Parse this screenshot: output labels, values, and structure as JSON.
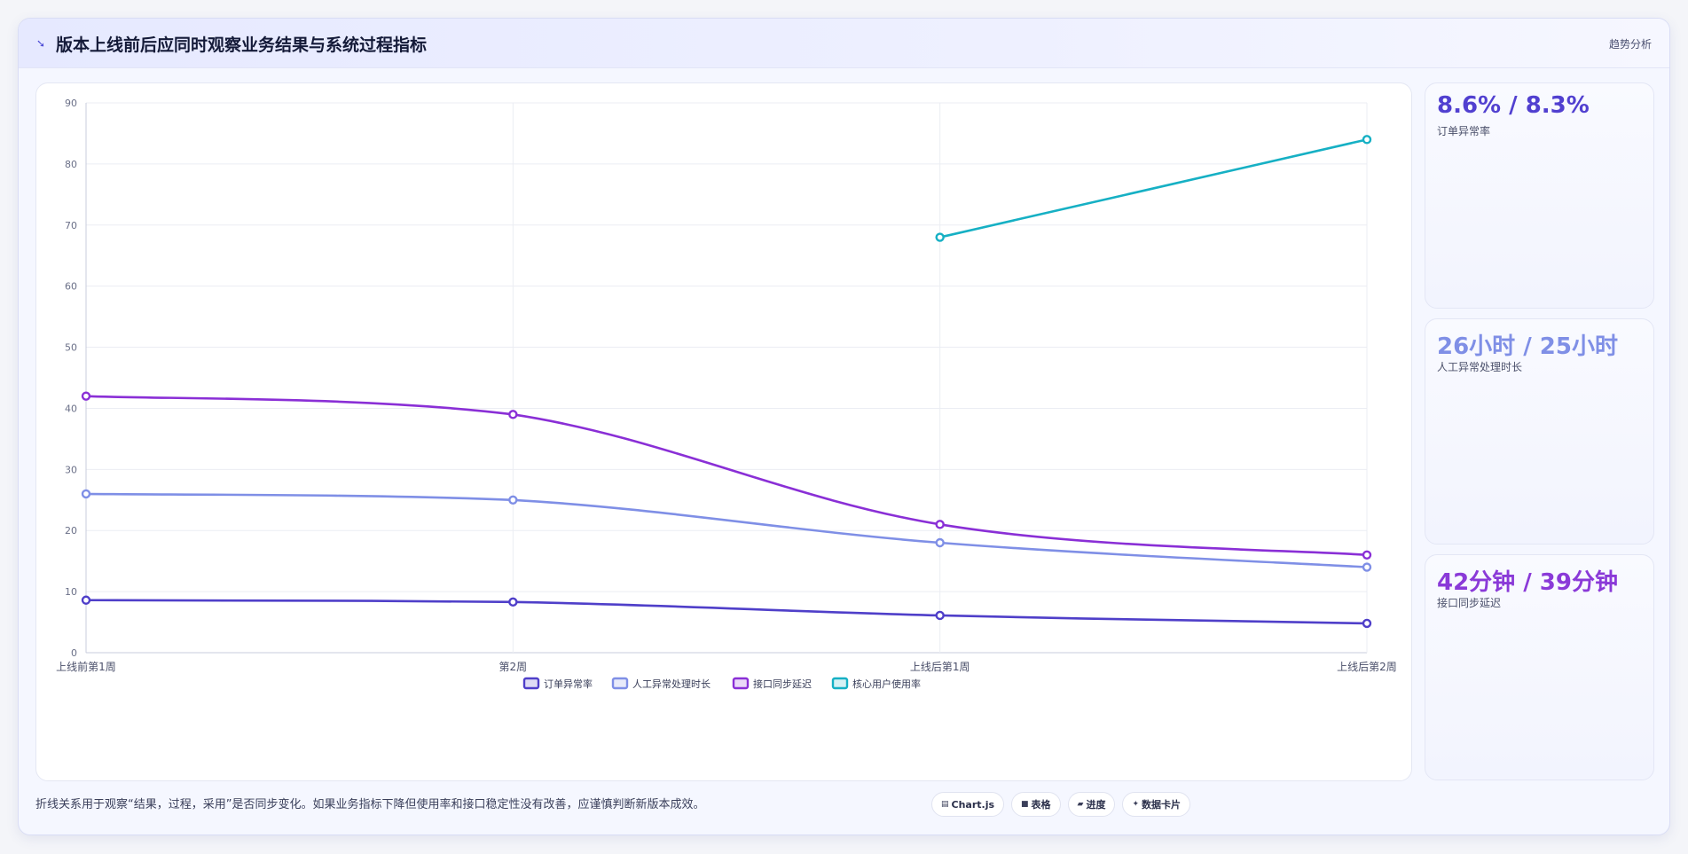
{
  "header": {
    "title": "版本上线前后应同时观察业务结果与系统过程指标",
    "tag": "趋势分析"
  },
  "kpis": [
    {
      "value": "8.6% / 8.3%",
      "label": "订单异常率",
      "color": "#5140d0"
    },
    {
      "value": "26小时 / 25小时",
      "label": "人工异常处理时长",
      "color": "#7f8fe6"
    },
    {
      "value": "42分钟 / 39分钟",
      "label": "接口同步延迟",
      "color": "#8a3ad8"
    }
  ],
  "footer": {
    "note": "折线关系用于观察“结果，过程，采用”是否同步变化。如果业务指标下降但使用率和接口稳定性没有改善，应谨慎判断新版本成效。",
    "buttons": [
      {
        "icon": "▤",
        "label": "Chart.js"
      },
      {
        "icon": "■",
        "label": "表格"
      },
      {
        "icon": "▰",
        "label": "进度"
      },
      {
        "icon": "✦",
        "label": "数据卡片"
      }
    ]
  },
  "chart_data": {
    "type": "line",
    "categories": [
      "上线前第1周",
      "第2周",
      "上线后第1周",
      "上线后第2周"
    ],
    "ylim": [
      0,
      90
    ],
    "yticks": [
      0,
      10,
      20,
      30,
      40,
      50,
      60,
      70,
      80,
      90
    ],
    "grid": true,
    "legend": "bottom",
    "series": [
      {
        "name": "订单异常率",
        "values": [
          8.6,
          8.3,
          6.1,
          4.8
        ],
        "color": "#4f3fc9"
      },
      {
        "name": "人工异常处理时长",
        "values": [
          26,
          25,
          18,
          14
        ],
        "color": "#7f8fe6"
      },
      {
        "name": "接口同步延迟",
        "values": [
          42,
          39,
          21,
          16
        ],
        "color": "#8a2fd6"
      },
      {
        "name": "核心用户使用率",
        "values": [
          null,
          null,
          68,
          84
        ],
        "color": "#16b0c4"
      }
    ]
  }
}
